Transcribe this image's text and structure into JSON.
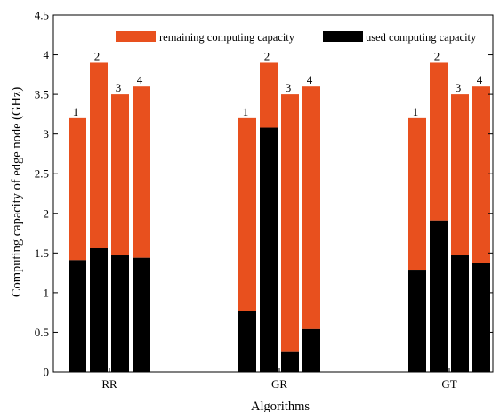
{
  "chart_data": {
    "type": "bar",
    "stacked": true,
    "title": "",
    "xlabel": "Algorithms",
    "ylabel": "Computing capacity of edge node (GHz)",
    "ylim": [
      0,
      4.5
    ],
    "yticks": [
      "0",
      "0.5",
      "1",
      "1.5",
      "2",
      "2.5",
      "3",
      "3.5",
      "4",
      "4.5"
    ],
    "grid": false,
    "legend_position": "top",
    "groups": [
      {
        "name": "RR",
        "bars": [
          {
            "label": "1",
            "used": 1.41,
            "total": 3.2
          },
          {
            "label": "2",
            "used": 1.56,
            "total": 3.9
          },
          {
            "label": "3",
            "used": 1.47,
            "total": 3.5
          },
          {
            "label": "4",
            "used": 1.44,
            "total": 3.6
          }
        ]
      },
      {
        "name": "GR",
        "bars": [
          {
            "label": "1",
            "used": 0.77,
            "total": 3.2
          },
          {
            "label": "2",
            "used": 3.08,
            "total": 3.9
          },
          {
            "label": "3",
            "used": 0.25,
            "total": 3.5
          },
          {
            "label": "4",
            "used": 0.54,
            "total": 3.6
          }
        ]
      },
      {
        "name": "GT",
        "bars": [
          {
            "label": "1",
            "used": 1.29,
            "total": 3.2
          },
          {
            "label": "2",
            "used": 1.91,
            "total": 3.9
          },
          {
            "label": "3",
            "used": 1.47,
            "total": 3.5
          },
          {
            "label": "4",
            "used": 1.37,
            "total": 3.6
          }
        ]
      }
    ],
    "series": [
      {
        "name": "remaining computing capacity",
        "color": "#e8501e"
      },
      {
        "name": "used computing capacity",
        "color": "#000000"
      }
    ]
  }
}
